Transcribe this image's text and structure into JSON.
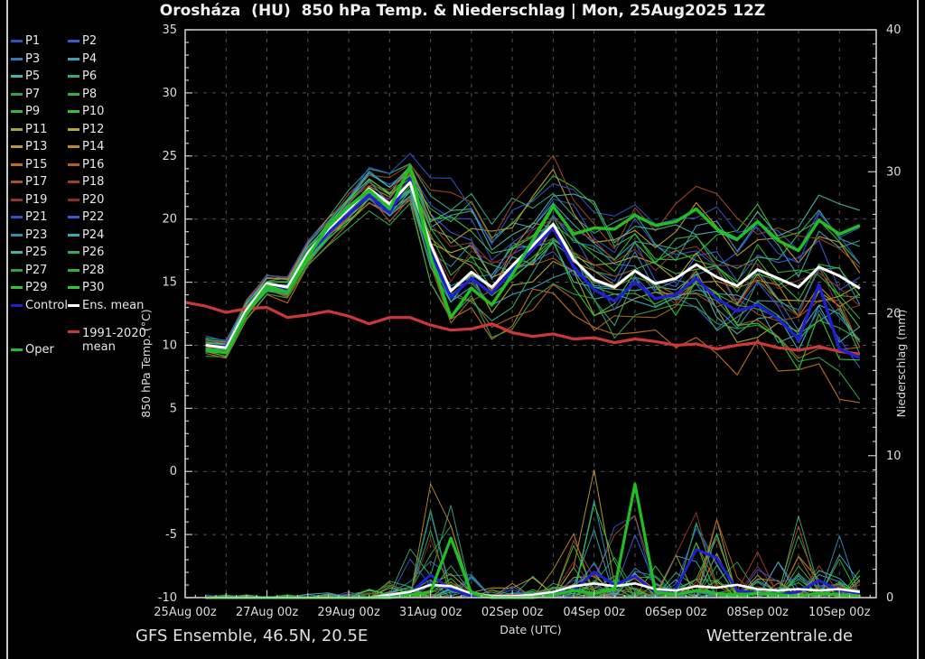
{
  "title": "Orosháza  (HU)  850 hPa Temp. & Niederschlag | Mon, 25Aug2025 12Z",
  "footer": {
    "left": "GFS Ensemble, 46.5N, 20.5E",
    "right": "Wetterzentrale.de"
  },
  "legend": {
    "member_labels": [
      "P1",
      "P2",
      "P3",
      "P4",
      "P5",
      "P6",
      "P7",
      "P8",
      "P9",
      "P10",
      "P11",
      "P12",
      "P13",
      "P14",
      "P15",
      "P16",
      "P17",
      "P18",
      "P19",
      "P20",
      "P21",
      "P22",
      "P23",
      "P24",
      "P25",
      "P26",
      "P27",
      "P28",
      "P29",
      "P30"
    ],
    "control": {
      "label": "Control",
      "color": "#2020d0"
    },
    "ens_mean": {
      "label": "Ens. mean",
      "color": "#ffffff"
    },
    "clim": {
      "label_line1": "1991-2020",
      "label_line2": "mean",
      "color": "#cc3838"
    },
    "oper": {
      "label": "Oper",
      "color": "#20c020"
    }
  },
  "chart_data": {
    "type": "line",
    "title": "Orosháza (HU) 850 hPa Temp. & Niederschlag | Mon, 25Aug2025 12Z",
    "xlabel": "Date (UTC)",
    "ylabel_left": "850 hPa Temp. (°C)",
    "ylabel_right": "Niederschlag (mm)",
    "y_left_ticks": [
      35,
      30,
      25,
      20,
      15,
      10,
      5,
      0,
      -5,
      -10
    ],
    "y_right_ticks": [
      40,
      30,
      20,
      10,
      0
    ],
    "y_left_range": [
      -10,
      35
    ],
    "y_right_range": [
      0,
      40
    ],
    "grid": "dashed, every 1 day vertical, every 5 °C horizontal",
    "legend_position": "outside-left",
    "x_axis_day_max": 16.9,
    "x_ticks": [
      {
        "day": 0,
        "label": "25Aug 00z"
      },
      {
        "day": 2,
        "label": "27Aug 00z"
      },
      {
        "day": 4,
        "label": "29Aug 00z"
      },
      {
        "day": 6,
        "label": "31Aug 00z"
      },
      {
        "day": 8,
        "label": "02Sep 00z"
      },
      {
        "day": 10,
        "label": "04Sep 00z"
      },
      {
        "day": 12,
        "label": "06Sep 00z"
      },
      {
        "day": 14,
        "label": "08Sep 00z"
      },
      {
        "day": 16,
        "label": "10Sep 00z"
      }
    ],
    "step_days": 0.5,
    "members": {
      "count": 30,
      "colors": [
        "#3050c8",
        "#3858d8",
        "#2f7bb8",
        "#38a0b8",
        "#45b4ac",
        "#35a878",
        "#2fa050",
        "#30b040",
        "#38b838",
        "#30c030",
        "#a8a830",
        "#b8a828",
        "#c09828",
        "#c08820",
        "#c07020",
        "#b06020",
        "#a85020",
        "#a04020",
        "#983030",
        "#902828",
        "#3050c8",
        "#3858d8",
        "#2f8bb8",
        "#38a8b8",
        "#45b4a0",
        "#35a868",
        "#2fa048",
        "#30b038",
        "#38c038",
        "#30c830"
      ]
    },
    "temp": {
      "ens_mean": {
        "name": "Ens. mean",
        "color": "#ffffff",
        "start_day": 0.5,
        "values": [
          10.0,
          9.8,
          12.8,
          14.9,
          14.6,
          17.3,
          19.2,
          20.8,
          22.4,
          21.2,
          22.9,
          18.0,
          14.3,
          15.8,
          14.6,
          16.3,
          17.9,
          19.6,
          16.8,
          15.2,
          14.6,
          15.9,
          14.9,
          15.3,
          16.4,
          15.4,
          14.7,
          16.0,
          15.3,
          14.6,
          16.2,
          15.5,
          14.5
        ]
      },
      "control": {
        "name": "Control",
        "color": "#2020d0",
        "start_day": 0.5,
        "values": [
          10.0,
          9.9,
          12.7,
          14.8,
          14.4,
          17.1,
          18.9,
          20.4,
          21.9,
          20.5,
          23.2,
          17.4,
          13.8,
          15.3,
          14.1,
          16.0,
          17.6,
          19.3,
          16.2,
          14.4,
          13.5,
          15.0,
          13.7,
          14.0,
          15.3,
          13.7,
          12.7,
          13.2,
          12.1,
          10.5,
          14.8,
          9.7,
          9.0
        ]
      },
      "oper": {
        "name": "Oper",
        "color": "#20c020",
        "start_day": 0.5,
        "values": [
          9.6,
          9.4,
          12.5,
          14.7,
          14.2,
          17.0,
          19.4,
          21.0,
          22.3,
          20.8,
          24.2,
          17.0,
          12.2,
          14.5,
          13.2,
          15.6,
          18.3,
          21.0,
          18.8,
          19.3,
          19.2,
          20.3,
          19.5,
          19.8,
          20.8,
          19.2,
          18.4,
          19.8,
          18.3,
          17.5,
          19.9,
          18.8,
          19.5
        ]
      },
      "clim_mean": {
        "name": "1991-2020 mean",
        "color": "#cc3838",
        "start_day": 0,
        "values": [
          13.4,
          13.1,
          12.6,
          12.9,
          13.0,
          12.2,
          12.4,
          12.7,
          12.3,
          11.7,
          12.2,
          12.2,
          11.6,
          11.2,
          11.3,
          11.7,
          11.0,
          10.7,
          10.9,
          10.5,
          10.6,
          10.2,
          10.5,
          10.3,
          10.0,
          10.1,
          9.7,
          10.0,
          10.2,
          9.8,
          9.6,
          9.9,
          9.5,
          9.3
        ]
      },
      "envelope_min": [
        9.0,
        8.8,
        11.8,
        13.6,
        13.2,
        15.8,
        17.5,
        19.0,
        20.5,
        19.0,
        20.5,
        14.5,
        10.5,
        10.8,
        9.5,
        11.0,
        12.0,
        13.0,
        12.0,
        10.5,
        9.5,
        11.0,
        10.0,
        9.0,
        10.0,
        8.5,
        7.5,
        8.0,
        6.5,
        4.5,
        7.0,
        5.0,
        4.0
      ],
      "envelope_max": [
        10.8,
        10.5,
        13.8,
        15.6,
        15.8,
        18.5,
        20.5,
        22.5,
        24.5,
        24.0,
        25.5,
        23.5,
        25.0,
        24.0,
        22.0,
        23.5,
        24.0,
        25.5,
        24.5,
        23.0,
        22.0,
        23.5,
        22.0,
        22.5,
        23.0,
        22.0,
        21.0,
        22.0,
        21.5,
        21.0,
        22.5,
        22.0,
        21.5
      ]
    },
    "precip": {
      "ens_mean": {
        "name": "Ens. mean",
        "color": "#ffffff",
        "start_day": 0.5,
        "values": [
          0,
          0,
          0,
          0,
          0,
          0,
          0,
          0,
          0,
          0.2,
          0.4,
          0.9,
          0.8,
          0.3,
          0.1,
          0.1,
          0.2,
          0.4,
          0.8,
          1.0,
          0.8,
          1.0,
          0.6,
          0.5,
          0.8,
          0.7,
          0.9,
          0.6,
          0.5,
          0.6,
          0.5,
          0.6,
          0.4
        ]
      },
      "control": {
        "name": "Control",
        "color": "#2020d0",
        "start_day": 0.5,
        "values": [
          0,
          0,
          0,
          0,
          0,
          0,
          0,
          0,
          0,
          0,
          0.3,
          1.6,
          0.6,
          0.1,
          0,
          0,
          0.1,
          0.3,
          0.5,
          1.8,
          0.9,
          1.5,
          0.4,
          0.6,
          3.4,
          2.8,
          0.5,
          0.3,
          0.2,
          0.4,
          1.2,
          0.5,
          0.3
        ]
      },
      "oper": {
        "name": "Oper",
        "color": "#20c020",
        "start_day": 0.5,
        "values": [
          0,
          0,
          0,
          0,
          0,
          0,
          0,
          0,
          0,
          0,
          0.2,
          0.4,
          4.2,
          0.3,
          0,
          0,
          0,
          0.2,
          0.5,
          0.3,
          0.6,
          8.0,
          0.4,
          0.2,
          0.5,
          0.3,
          0.2,
          0.3,
          0.2,
          0.1,
          0.3,
          0.2,
          0.1
        ]
      },
      "envelope_max": [
        0.3,
        0.2,
        0.2,
        0.3,
        0.2,
        0.3,
        0.4,
        0.5,
        0.6,
        1.5,
        3.5,
        8.0,
        6.5,
        2.0,
        0.8,
        1.0,
        1.5,
        3.0,
        4.5,
        9.0,
        5.0,
        8.5,
        2.5,
        3.0,
        6.0,
        5.5,
        2.5,
        8.5,
        2.5,
        6.5,
        3.0,
        4.5,
        2.0
      ]
    }
  }
}
